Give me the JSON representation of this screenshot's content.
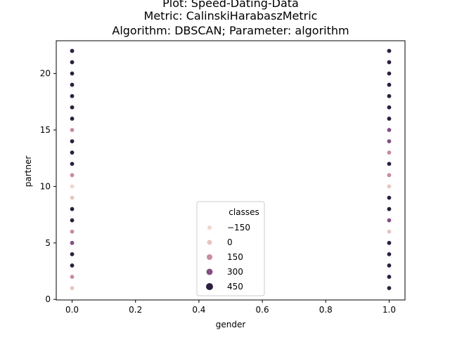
{
  "chart_data": {
    "type": "scatter",
    "title_lines": [
      "Plot: Speed-Dating-Data",
      "Metric: CalinskiHarabaszMetric",
      "Algorithm: DBSCAN; Parameter: algorithm"
    ],
    "xlabel": "gender",
    "ylabel": "partner",
    "xlim": [
      -0.05,
      1.05
    ],
    "ylim": [
      -0.05,
      22.9
    ],
    "xticks": [
      0.0,
      0.2,
      0.4,
      0.6,
      0.8,
      1.0
    ],
    "xtick_labels": [
      "0.0",
      "0.2",
      "0.4",
      "0.6",
      "0.8",
      "1.0"
    ],
    "yticks": [
      0,
      5,
      10,
      15,
      20
    ],
    "ytick_labels": [
      "0",
      "5",
      "10",
      "15",
      "20"
    ],
    "grid": false,
    "legend": {
      "title": "classes",
      "placement": "lower-center",
      "entries": [
        {
          "label": "−150",
          "value": -150
        },
        {
          "label": "0",
          "value": 0
        },
        {
          "label": "150",
          "value": 150
        },
        {
          "label": "300",
          "value": 300
        },
        {
          "label": "450",
          "value": 450
        }
      ]
    },
    "hue": {
      "var": "classes",
      "min": -150,
      "max": 450,
      "colors": [
        "#efd5d0",
        "#e8c5c0",
        "#c98aa3",
        "#834f85",
        "#2d1e3e"
      ]
    },
    "series": [
      {
        "points": [
          {
            "x": 0,
            "y": 1,
            "c": 0
          },
          {
            "x": 0,
            "y": 2,
            "c": 150
          },
          {
            "x": 0,
            "y": 3,
            "c": 450
          },
          {
            "x": 0,
            "y": 4,
            "c": 450
          },
          {
            "x": 0,
            "y": 5,
            "c": 300
          },
          {
            "x": 0,
            "y": 6,
            "c": 150
          },
          {
            "x": 0,
            "y": 7,
            "c": 450
          },
          {
            "x": 0,
            "y": 8,
            "c": 450
          },
          {
            "x": 0,
            "y": 9,
            "c": 0
          },
          {
            "x": 0,
            "y": 10,
            "c": -150
          },
          {
            "x": 0,
            "y": 11,
            "c": 150
          },
          {
            "x": 0,
            "y": 12,
            "c": 450
          },
          {
            "x": 0,
            "y": 13,
            "c": 450
          },
          {
            "x": 0,
            "y": 14,
            "c": 450
          },
          {
            "x": 0,
            "y": 15,
            "c": 150
          },
          {
            "x": 0,
            "y": 16,
            "c": 450
          },
          {
            "x": 0,
            "y": 17,
            "c": 450
          },
          {
            "x": 0,
            "y": 18,
            "c": 450
          },
          {
            "x": 0,
            "y": 19,
            "c": 450
          },
          {
            "x": 0,
            "y": 20,
            "c": 450
          },
          {
            "x": 0,
            "y": 21,
            "c": 450
          },
          {
            "x": 0,
            "y": 22,
            "c": 450
          },
          {
            "x": 1,
            "y": 1,
            "c": 450
          },
          {
            "x": 1,
            "y": 2,
            "c": 450
          },
          {
            "x": 1,
            "y": 3,
            "c": 450
          },
          {
            "x": 1,
            "y": 4,
            "c": 450
          },
          {
            "x": 1,
            "y": 5,
            "c": 450
          },
          {
            "x": 1,
            "y": 6,
            "c": 0
          },
          {
            "x": 1,
            "y": 7,
            "c": 300
          },
          {
            "x": 1,
            "y": 8,
            "c": 450
          },
          {
            "x": 1,
            "y": 9,
            "c": 450
          },
          {
            "x": 1,
            "y": 10,
            "c": 0
          },
          {
            "x": 1,
            "y": 11,
            "c": 150
          },
          {
            "x": 1,
            "y": 12,
            "c": 450
          },
          {
            "x": 1,
            "y": 13,
            "c": 150
          },
          {
            "x": 1,
            "y": 14,
            "c": 300
          },
          {
            "x": 1,
            "y": 15,
            "c": 300
          },
          {
            "x": 1,
            "y": 16,
            "c": 450
          },
          {
            "x": 1,
            "y": 17,
            "c": 450
          },
          {
            "x": 1,
            "y": 18,
            "c": 450
          },
          {
            "x": 1,
            "y": 19,
            "c": 450
          },
          {
            "x": 1,
            "y": 20,
            "c": 450
          },
          {
            "x": 1,
            "y": 21,
            "c": 450
          },
          {
            "x": 1,
            "y": 22,
            "c": 450
          }
        ]
      }
    ]
  }
}
